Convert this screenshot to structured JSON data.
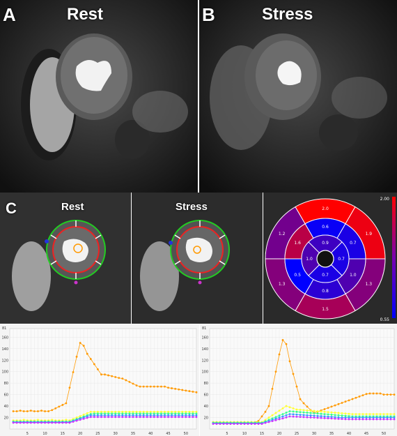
{
  "panel_a": {
    "letter": "A",
    "title": "Rest"
  },
  "panel_b": {
    "letter": "B",
    "title": "Stress"
  },
  "panel_c": {
    "letter": "C",
    "rest_title": "Rest",
    "stress_title": "Stress"
  },
  "bullseye": {
    "colorbar_max": "2.00",
    "colorbar_min": "0.55",
    "colors": {
      "high": "#ff0000",
      "low": "#0000ff",
      "mid": "#7a00b0"
    },
    "outer_ring": [
      "2.0",
      "1.9",
      "1.3",
      "1.5",
      "1.3",
      "1.2"
    ],
    "middle_ring": [
      "0.6",
      "0.7",
      "1.0",
      "0.8",
      "0.5",
      "1.6"
    ],
    "inner_ring": [
      "0.9",
      "0.7",
      "0.7",
      "1.0"
    ]
  },
  "curves": {
    "rest": {
      "y_ticks": [
        "160",
        "140",
        "120",
        "100",
        "80",
        "60",
        "40",
        "20"
      ],
      "x_ticks": [
        "5",
        "10",
        "15",
        "20",
        "25",
        "30",
        "35",
        "40",
        "45",
        "50"
      ],
      "top_label": "81",
      "series_colors": [
        "#ff9900",
        "#ffff33",
        "#33ff88",
        "#3399ff",
        "#cc33ff"
      ]
    },
    "stress": {
      "y_ticks": [
        "160",
        "140",
        "120",
        "100",
        "80",
        "60",
        "40",
        "20"
      ],
      "x_ticks": [
        "5",
        "10",
        "15",
        "20",
        "25",
        "30",
        "35",
        "40",
        "45",
        "50"
      ],
      "top_label": "81",
      "series_colors": [
        "#ff9900",
        "#ffff33",
        "#33ff88",
        "#3399ff",
        "#cc33ff"
      ]
    }
  }
}
